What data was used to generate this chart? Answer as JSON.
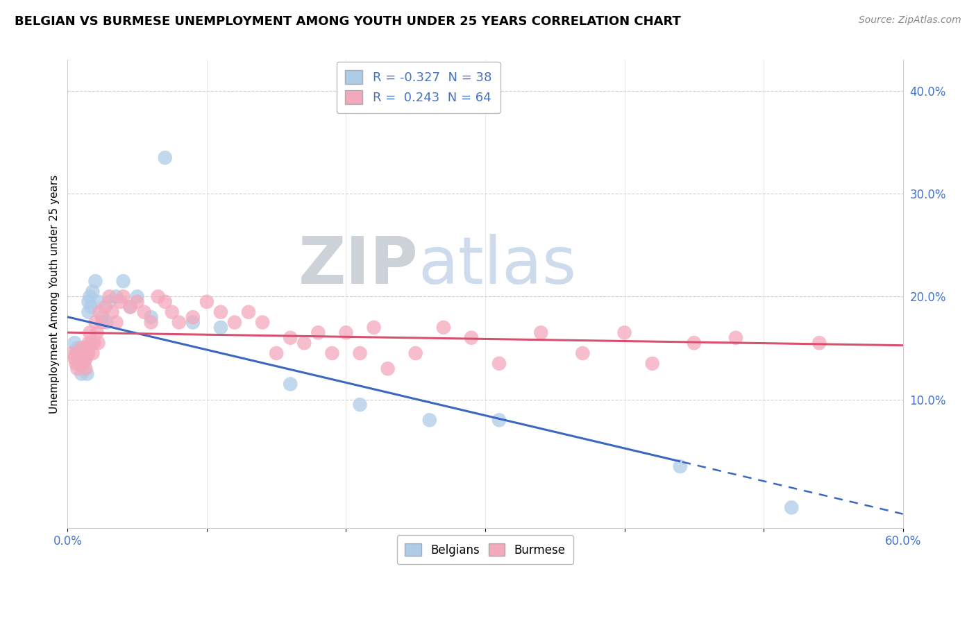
{
  "title": "BELGIAN VS BURMESE UNEMPLOYMENT AMONG YOUTH UNDER 25 YEARS CORRELATION CHART",
  "source": "Source: ZipAtlas.com",
  "ylabel": "Unemployment Among Youth under 25 years",
  "xlim": [
    0.0,
    0.6
  ],
  "ylim": [
    -0.025,
    0.43
  ],
  "belgian_R": -0.327,
  "belgian_N": 38,
  "burmese_R": 0.243,
  "burmese_N": 64,
  "belgian_color": "#aecce8",
  "burmese_color": "#f4a8bb",
  "trend_belgian_color": "#3a68c0",
  "trend_burmese_color": "#d85070",
  "watermark_zip": "ZIP",
  "watermark_atlas": "atlas",
  "belgians_x": [
    0.005,
    0.006,
    0.007,
    0.008,
    0.008,
    0.009,
    0.01,
    0.01,
    0.01,
    0.011,
    0.012,
    0.012,
    0.013,
    0.014,
    0.015,
    0.015,
    0.016,
    0.017,
    0.018,
    0.02,
    0.022,
    0.025,
    0.028,
    0.03,
    0.035,
    0.04,
    0.045,
    0.05,
    0.06,
    0.07,
    0.09,
    0.11,
    0.16,
    0.21,
    0.26,
    0.31,
    0.44,
    0.52
  ],
  "belgians_y": [
    0.155,
    0.145,
    0.15,
    0.14,
    0.135,
    0.15,
    0.145,
    0.135,
    0.125,
    0.15,
    0.145,
    0.135,
    0.14,
    0.125,
    0.195,
    0.185,
    0.2,
    0.19,
    0.205,
    0.215,
    0.195,
    0.18,
    0.175,
    0.195,
    0.2,
    0.215,
    0.19,
    0.2,
    0.18,
    0.335,
    0.175,
    0.17,
    0.115,
    0.095,
    0.08,
    0.08,
    0.035,
    -0.005
  ],
  "burmese_x": [
    0.003,
    0.005,
    0.006,
    0.007,
    0.008,
    0.009,
    0.01,
    0.01,
    0.011,
    0.012,
    0.013,
    0.013,
    0.014,
    0.015,
    0.015,
    0.016,
    0.017,
    0.018,
    0.019,
    0.02,
    0.021,
    0.022,
    0.023,
    0.025,
    0.027,
    0.03,
    0.032,
    0.035,
    0.038,
    0.04,
    0.045,
    0.05,
    0.055,
    0.06,
    0.065,
    0.07,
    0.075,
    0.08,
    0.09,
    0.1,
    0.11,
    0.12,
    0.13,
    0.14,
    0.15,
    0.16,
    0.17,
    0.18,
    0.19,
    0.2,
    0.21,
    0.22,
    0.23,
    0.25,
    0.27,
    0.29,
    0.31,
    0.34,
    0.37,
    0.4,
    0.42,
    0.45,
    0.48,
    0.54
  ],
  "burmese_y": [
    0.145,
    0.14,
    0.135,
    0.13,
    0.145,
    0.14,
    0.15,
    0.14,
    0.135,
    0.145,
    0.14,
    0.13,
    0.15,
    0.155,
    0.145,
    0.165,
    0.155,
    0.145,
    0.155,
    0.175,
    0.165,
    0.155,
    0.185,
    0.175,
    0.19,
    0.2,
    0.185,
    0.175,
    0.195,
    0.2,
    0.19,
    0.195,
    0.185,
    0.175,
    0.2,
    0.195,
    0.185,
    0.175,
    0.18,
    0.195,
    0.185,
    0.175,
    0.185,
    0.175,
    0.145,
    0.16,
    0.155,
    0.165,
    0.145,
    0.165,
    0.145,
    0.17,
    0.13,
    0.145,
    0.17,
    0.16,
    0.135,
    0.165,
    0.145,
    0.165,
    0.135,
    0.155,
    0.16,
    0.155
  ]
}
